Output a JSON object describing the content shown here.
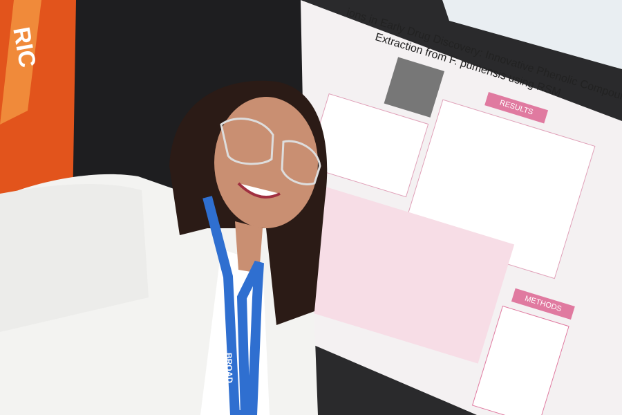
{
  "poster": {
    "title_line1": "ions in Early Drug Discovery: Innovative Phenolic Compounds",
    "title_line2": "Extraction from F. pumensis using RSM",
    "results": "RESULTS",
    "methods": "METHODS"
  },
  "lanyard": "BROAD",
  "sign": "RIC"
}
